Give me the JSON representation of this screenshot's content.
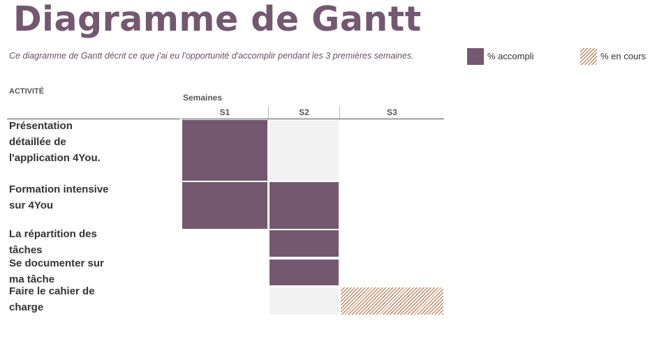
{
  "title": "Diagramme de Gantt",
  "subtitle": "Ce diagramme de Gantt décrit ce que j'ai eu l'opportunité d'accomplir pendant les 3 premières semaines.",
  "colors": {
    "title": "#745870",
    "subtitle": "#6b4f6a",
    "accompli": "#745870",
    "empty": "#f2f2f2",
    "hatch": "#b2693e"
  },
  "legend": {
    "accompli": "% accompli",
    "en_cours": "% en cours"
  },
  "table": {
    "activity_header": "ACTIVITÉ",
    "weeks_label": "Semaines"
  },
  "chart_data": {
    "type": "table",
    "title": "Diagramme de Gantt",
    "weeks": [
      "S1",
      "S2",
      "S3"
    ],
    "tasks": [
      {
        "name": "Présentation détaillée de l'application 4You.",
        "cells": [
          "accompli",
          "vide",
          "none"
        ]
      },
      {
        "name": "Formation intensive sur 4You",
        "cells": [
          "accompli",
          "accompli",
          "none"
        ]
      },
      {
        "name": "La répartition des tâches",
        "cells": [
          "none",
          "accompli",
          "none"
        ]
      },
      {
        "name": "Se documenter sur ma tâche",
        "cells": [
          "none",
          "accompli",
          "none"
        ]
      },
      {
        "name": "Faire le cahier de charge",
        "cells": [
          "none",
          "vide",
          "en_cours"
        ]
      }
    ],
    "legend": [
      "% accompli",
      "% en cours"
    ]
  }
}
